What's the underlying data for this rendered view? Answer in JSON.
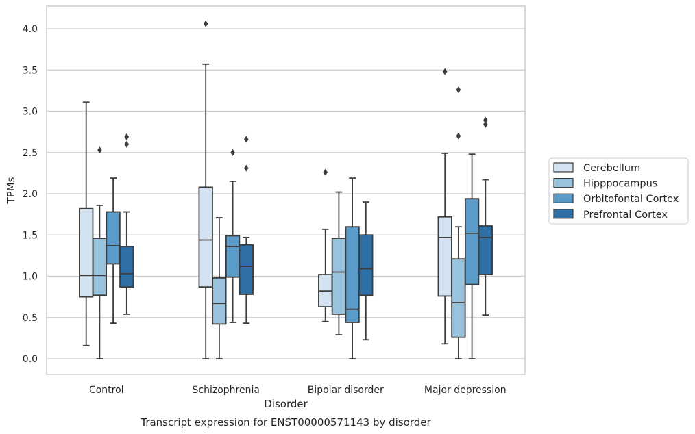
{
  "chart_data": {
    "type": "box",
    "title": "Transcript expression for ENST00000571143 by disorder",
    "xlabel": "Disorder",
    "ylabel": "TPMs",
    "ylim": [
      -0.2,
      4.27
    ],
    "yticks": [
      "0.0",
      "0.5",
      "1.0",
      "1.5",
      "2.0",
      "2.5",
      "3.0",
      "3.5",
      "4.0"
    ],
    "grid": "horizontal",
    "legend_position": "right",
    "categories": [
      "Control",
      "Schizophrenia",
      "Bipolar disorder",
      "Major depression"
    ],
    "series": [
      {
        "name": "Cerebellum",
        "color": "#d4e3f2",
        "boxes": [
          {
            "whisker_low": 0.16,
            "q1": 0.75,
            "median": 1.01,
            "q3": 1.82,
            "whisker_high": 3.11,
            "outliers": []
          },
          {
            "whisker_low": 0.0,
            "q1": 0.87,
            "median": 1.44,
            "q3": 2.08,
            "whisker_high": 3.57,
            "outliers": [
              4.06
            ]
          },
          {
            "whisker_low": 0.45,
            "q1": 0.63,
            "median": 0.82,
            "q3": 1.02,
            "whisker_high": 1.57,
            "outliers": [
              2.26
            ]
          },
          {
            "whisker_low": 0.18,
            "q1": 0.76,
            "median": 1.47,
            "q3": 1.72,
            "whisker_high": 2.49,
            "outliers": [
              3.48
            ]
          }
        ]
      },
      {
        "name": "Hipppocampus",
        "color": "#99c2dd",
        "boxes": [
          {
            "whisker_low": 0.0,
            "q1": 0.77,
            "median": 1.01,
            "q3": 1.46,
            "whisker_high": 1.86,
            "outliers": [
              2.53
            ]
          },
          {
            "whisker_low": 0.0,
            "q1": 0.42,
            "median": 0.67,
            "q3": 0.98,
            "whisker_high": 1.71,
            "outliers": []
          },
          {
            "whisker_low": 0.29,
            "q1": 0.54,
            "median": 1.05,
            "q3": 1.46,
            "whisker_high": 2.02,
            "outliers": []
          },
          {
            "whisker_low": 0.0,
            "q1": 0.26,
            "median": 0.68,
            "q3": 1.21,
            "whisker_high": 1.6,
            "outliers": [
              2.7,
              3.26
            ]
          }
        ]
      },
      {
        "name": "Orbitofontal Cortex",
        "color": "#5b9bc9",
        "boxes": [
          {
            "whisker_low": 0.43,
            "q1": 1.15,
            "median": 1.37,
            "q3": 1.78,
            "whisker_high": 2.19,
            "outliers": []
          },
          {
            "whisker_low": 0.44,
            "q1": 0.99,
            "median": 1.36,
            "q3": 1.49,
            "whisker_high": 2.15,
            "outliers": [
              2.5
            ]
          },
          {
            "whisker_low": 0.0,
            "q1": 0.44,
            "median": 0.6,
            "q3": 1.6,
            "whisker_high": 2.19,
            "outliers": []
          },
          {
            "whisker_low": 0.0,
            "q1": 0.9,
            "median": 1.52,
            "q3": 1.94,
            "whisker_high": 2.48,
            "outliers": []
          }
        ]
      },
      {
        "name": "Prefrontal Cortex",
        "color": "#2e6fa6",
        "boxes": [
          {
            "whisker_low": 0.54,
            "q1": 0.87,
            "median": 1.03,
            "q3": 1.36,
            "whisker_high": 1.78,
            "outliers": [
              2.6,
              2.69
            ]
          },
          {
            "whisker_low": 0.43,
            "q1": 0.78,
            "median": 1.12,
            "q3": 1.38,
            "whisker_high": 1.47,
            "outliers": [
              2.31,
              2.66
            ]
          },
          {
            "whisker_low": 0.23,
            "q1": 0.77,
            "median": 1.09,
            "q3": 1.5,
            "whisker_high": 1.9,
            "outliers": []
          },
          {
            "whisker_low": 0.53,
            "q1": 1.02,
            "median": 1.47,
            "q3": 1.61,
            "whisker_high": 2.17,
            "outliers": [
              2.84,
              2.89
            ]
          }
        ]
      }
    ]
  }
}
